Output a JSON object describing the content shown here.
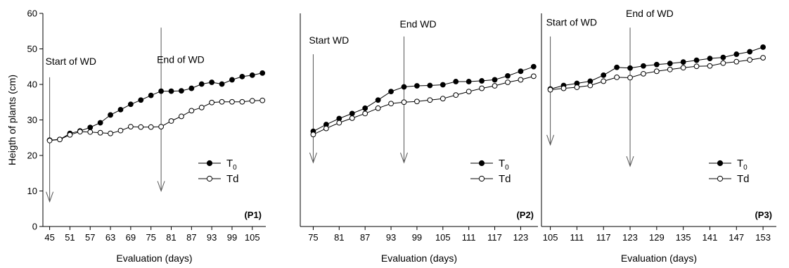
{
  "figure": {
    "ylabel": "Heigth of plants (cm)",
    "ylim": [
      0,
      60
    ],
    "yticks": [
      0,
      10,
      20,
      30,
      40,
      50,
      60
    ]
  },
  "chart_data": [
    {
      "type": "line",
      "panel_label": "(P1)",
      "xlabel": "Evaluation (days)",
      "xlim": [
        43,
        109
      ],
      "xticks": [
        45,
        51,
        57,
        63,
        69,
        75,
        81,
        87,
        93,
        99,
        105
      ],
      "ylim": [
        0,
        60
      ],
      "series": [
        {
          "name": "T",
          "name_sub": "0",
          "marker": "filled",
          "x": [
            45,
            48,
            51,
            54,
            57,
            60,
            63,
            66,
            69,
            72,
            75,
            78,
            81,
            84,
            87,
            90,
            93,
            96,
            99,
            102,
            105,
            108
          ],
          "y": [
            24.3,
            24.5,
            26.2,
            26.9,
            27.9,
            29.2,
            31.4,
            32.9,
            34.4,
            35.6,
            36.9,
            38.1,
            38.1,
            38.2,
            38.9,
            40.1,
            40.6,
            40.1,
            41.3,
            42.2,
            42.6,
            43.2
          ]
        },
        {
          "name": "Td",
          "marker": "open",
          "x": [
            45,
            48,
            51,
            54,
            57,
            60,
            63,
            66,
            69,
            72,
            75,
            78,
            81,
            84,
            87,
            90,
            93,
            96,
            99,
            102,
            105,
            108
          ],
          "y": [
            24.2,
            24.5,
            25.8,
            26.7,
            26.6,
            26.4,
            26.2,
            27.0,
            28.1,
            28.0,
            28.0,
            28.1,
            29.7,
            31.0,
            32.6,
            33.5,
            34.9,
            35.1,
            35.1,
            35.1,
            35.4,
            35.5
          ]
        }
      ],
      "annotations": [
        {
          "text": "Start of WD",
          "x": 45,
          "text_y": 45.5,
          "arrow_from": 42,
          "arrow_to": 7
        },
        {
          "text": "End of WD",
          "x": 78,
          "text_y": 46,
          "arrow_from": 56,
          "arrow_to": 10
        }
      ],
      "legend": "right"
    },
    {
      "type": "line",
      "panel_label": "(P2)",
      "xlabel": "Evaluation (days)",
      "xlim": [
        72,
        127
      ],
      "xticks": [
        75,
        81,
        87,
        93,
        99,
        105,
        111,
        117,
        123
      ],
      "ylim": [
        0,
        60
      ],
      "series": [
        {
          "name": "T",
          "name_sub": "0",
          "marker": "filled",
          "x": [
            75,
            78,
            81,
            84,
            87,
            90,
            93,
            96,
            99,
            102,
            105,
            108,
            111,
            114,
            117,
            120,
            123,
            126
          ],
          "y": [
            26.8,
            28.7,
            30.4,
            31.8,
            33.3,
            35.6,
            38.0,
            39.3,
            39.6,
            39.7,
            39.9,
            40.8,
            40.8,
            41.0,
            41.3,
            42.4,
            43.7,
            45.0
          ]
        },
        {
          "name": "Td",
          "marker": "open",
          "x": [
            75,
            78,
            81,
            84,
            87,
            90,
            93,
            96,
            99,
            102,
            105,
            108,
            111,
            114,
            117,
            120,
            123,
            126
          ],
          "y": [
            25.9,
            27.6,
            29.2,
            30.5,
            31.8,
            33.3,
            34.6,
            35.0,
            35.2,
            35.6,
            36.0,
            37.0,
            38.0,
            38.9,
            39.6,
            40.6,
            41.3,
            42.3
          ]
        }
      ],
      "annotations": [
        {
          "text": "Start WD",
          "x": 75,
          "text_y": 51.5,
          "arrow_from": 48.5,
          "arrow_to": 18
        },
        {
          "text": "End WD",
          "x": 96,
          "text_y": 56,
          "arrow_from": 53.5,
          "arrow_to": 18
        }
      ],
      "legend": "right"
    },
    {
      "type": "line",
      "panel_label": "(P3)",
      "xlabel": "Evaluation (days)",
      "xlim": [
        103,
        156
      ],
      "xticks": [
        105,
        111,
        117,
        123,
        129,
        135,
        141,
        147,
        153
      ],
      "ylim": [
        0,
        60
      ],
      "series": [
        {
          "name": "T",
          "name_sub": "0",
          "marker": "filled",
          "x": [
            105,
            108,
            111,
            114,
            117,
            120,
            123,
            126,
            129,
            132,
            135,
            138,
            141,
            144,
            147,
            150,
            153
          ],
          "y": [
            38.7,
            39.7,
            40.3,
            40.9,
            42.6,
            44.8,
            44.6,
            45.2,
            45.6,
            45.9,
            46.3,
            46.8,
            47.3,
            47.6,
            48.5,
            49.2,
            50.5
          ]
        },
        {
          "name": "Td",
          "marker": "open",
          "x": [
            105,
            108,
            111,
            114,
            117,
            120,
            123,
            126,
            129,
            132,
            135,
            138,
            141,
            144,
            147,
            150,
            153
          ],
          "y": [
            38.5,
            38.9,
            39.2,
            39.7,
            40.9,
            42.0,
            41.9,
            43.0,
            43.7,
            44.2,
            44.7,
            45.1,
            45.2,
            46.0,
            46.4,
            46.9,
            47.5
          ]
        }
      ],
      "annotations": [
        {
          "text": "Start of WD",
          "x": 105,
          "text_y": 56.5,
          "arrow_from": 53.5,
          "arrow_to": 23
        },
        {
          "text": "End of WD",
          "x": 123,
          "text_y": 59,
          "arrow_from": 56,
          "arrow_to": 17
        }
      ],
      "legend": "right"
    }
  ]
}
